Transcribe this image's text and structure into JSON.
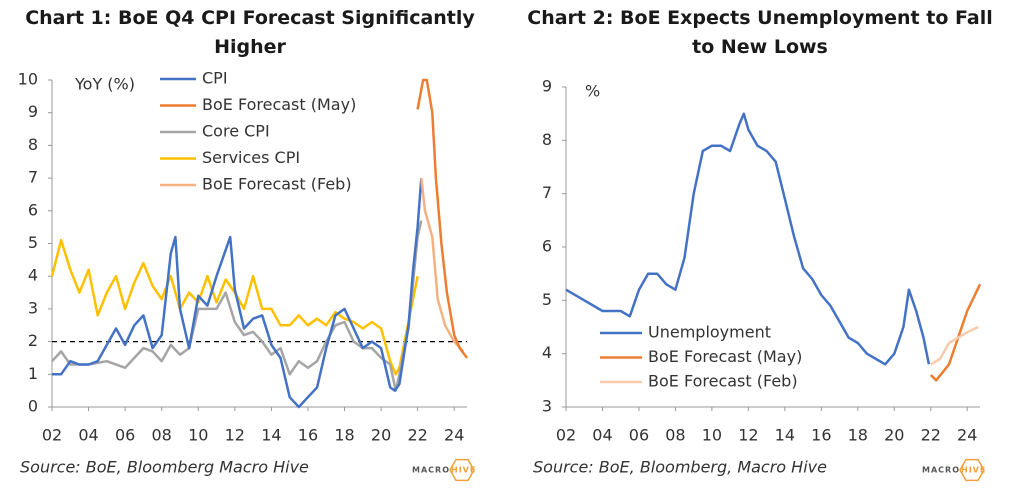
{
  "chart_data": [
    {
      "type": "line",
      "title": "Chart 1: BoE Q4 CPI Forecast Significantly Higher",
      "ylabel": "YoY (%)",
      "ylim": [
        0,
        10
      ],
      "yticks": [
        0,
        1,
        2,
        3,
        4,
        5,
        6,
        7,
        8,
        9,
        10
      ],
      "xlim": [
        2002,
        2024.7
      ],
      "xticks": [
        {
          "value": 2002,
          "label": "02"
        },
        {
          "value": 2004,
          "label": "04"
        },
        {
          "value": 2006,
          "label": "06"
        },
        {
          "value": 2008,
          "label": "08"
        },
        {
          "value": 2010,
          "label": "10"
        },
        {
          "value": 2012,
          "label": "12"
        },
        {
          "value": 2014,
          "label": "14"
        },
        {
          "value": 2016,
          "label": "16"
        },
        {
          "value": 2018,
          "label": "18"
        },
        {
          "value": 2020,
          "label": "20"
        },
        {
          "value": 2022,
          "label": "22"
        },
        {
          "value": 2024,
          "label": "24"
        }
      ],
      "reference_line": 2,
      "source": "Source: BoE, Bloomberg Macro Hive",
      "logo_left": "MACRO",
      "logo_right": "HIVE",
      "series": [
        {
          "name": "Services CPI",
          "color": "#ffc000",
          "x": [
            2002,
            2002.5,
            2003,
            2003.5,
            2004,
            2004.5,
            2005,
            2005.5,
            2006,
            2006.5,
            2007,
            2007.5,
            2008,
            2008.5,
            2009,
            2009.5,
            2010,
            2010.5,
            2011,
            2011.5,
            2012,
            2012.5,
            2013,
            2013.5,
            2014,
            2014.5,
            2015,
            2015.5,
            2016,
            2016.5,
            2017,
            2017.5,
            2018,
            2018.5,
            2019,
            2019.5,
            2020,
            2020.5,
            2020.8,
            2021,
            2021.5,
            2022
          ],
          "values": [
            4.0,
            5.1,
            4.2,
            3.5,
            4.2,
            2.8,
            3.5,
            4.0,
            3.0,
            3.8,
            4.4,
            3.7,
            3.3,
            4.0,
            3.0,
            3.5,
            3.2,
            4.0,
            3.2,
            3.9,
            3.5,
            3.0,
            4.0,
            3.0,
            3.0,
            2.5,
            2.5,
            2.8,
            2.5,
            2.7,
            2.5,
            2.9,
            2.7,
            2.6,
            2.4,
            2.6,
            2.4,
            1.4,
            1.0,
            1.2,
            2.6,
            4.0
          ]
        },
        {
          "name": "Core CPI",
          "color": "#a5a5a5",
          "x": [
            2002,
            2002.5,
            2003,
            2004,
            2005,
            2006,
            2007,
            2007.5,
            2008,
            2008.5,
            2009,
            2009.5,
            2010,
            2011,
            2011.5,
            2012,
            2012.5,
            2013,
            2013.5,
            2014,
            2014.5,
            2015,
            2015.5,
            2016,
            2016.5,
            2017,
            2017.5,
            2018,
            2018.5,
            2019,
            2019.5,
            2020,
            2020.5,
            2020.8,
            2021,
            2021.5,
            2022,
            2022.2
          ],
          "values": [
            1.4,
            1.7,
            1.3,
            1.3,
            1.4,
            1.2,
            1.8,
            1.7,
            1.4,
            1.9,
            1.6,
            1.8,
            3.0,
            3.0,
            3.5,
            2.6,
            2.2,
            2.3,
            2.0,
            1.6,
            1.8,
            1.0,
            1.4,
            1.2,
            1.4,
            2.0,
            2.5,
            2.6,
            2.0,
            1.8,
            1.8,
            1.5,
            1.3,
            0.5,
            1.0,
            2.4,
            5.2,
            5.7
          ]
        },
        {
          "name": "CPI",
          "color": "#4472c4",
          "x": [
            2002,
            2002.5,
            2003,
            2003.5,
            2004,
            2004.5,
            2005,
            2005.5,
            2006,
            2006.5,
            2007,
            2007.5,
            2008,
            2008.5,
            2008.75,
            2009,
            2009.5,
            2010,
            2010.5,
            2011,
            2011.75,
            2012,
            2012.5,
            2013,
            2013.5,
            2014,
            2014.5,
            2015,
            2015.5,
            2016,
            2016.5,
            2017,
            2017.5,
            2018,
            2018.5,
            2019,
            2019.5,
            2020,
            2020.5,
            2020.75,
            2021,
            2021.5,
            2021.75,
            2022,
            2022.2
          ],
          "values": [
            1.0,
            1.0,
            1.4,
            1.3,
            1.3,
            1.4,
            1.9,
            2.4,
            1.9,
            2.5,
            2.8,
            1.8,
            2.2,
            4.7,
            5.2,
            3.0,
            1.8,
            3.4,
            3.1,
            4.0,
            5.2,
            3.6,
            2.4,
            2.7,
            2.8,
            1.9,
            1.5,
            0.3,
            0.0,
            0.3,
            0.6,
            1.8,
            2.8,
            3.0,
            2.4,
            1.8,
            2.0,
            1.8,
            0.6,
            0.5,
            0.7,
            2.5,
            4.2,
            5.5,
            7.0
          ]
        },
        {
          "name": "BoE Forecast (Feb)",
          "color": "#f4b183",
          "x": [
            2022.2,
            2022.4,
            2022.8,
            2023.1,
            2023.5,
            2024,
            2024.5
          ],
          "values": [
            7.0,
            6.0,
            5.2,
            3.3,
            2.5,
            2.0,
            1.7
          ]
        },
        {
          "name": "BoE Forecast (May)",
          "color": "#ed7d31",
          "x": [
            2022,
            2022.3,
            2022.5,
            2022.8,
            2023,
            2023.3,
            2023.6,
            2024,
            2024.3,
            2024.7
          ],
          "values": [
            9.1,
            10.0,
            10.0,
            9.0,
            7.0,
            5.0,
            3.5,
            2.2,
            1.8,
            1.5
          ]
        }
      ],
      "legend_order": [
        "CPI",
        "BoE Forecast (May)",
        "Core CPI",
        "Services CPI",
        "BoE Forecast (Feb)"
      ]
    },
    {
      "type": "line",
      "title": "Chart 2: BoE Expects Unemployment to Fall to New Lows",
      "ylabel": "%",
      "ylim": [
        3,
        9
      ],
      "yticks": [
        3,
        4,
        5,
        6,
        7,
        8,
        9
      ],
      "xlim": [
        2002,
        2024.7
      ],
      "xticks": [
        {
          "value": 2002,
          "label": "02"
        },
        {
          "value": 2004,
          "label": "04"
        },
        {
          "value": 2006,
          "label": "06"
        },
        {
          "value": 2008,
          "label": "08"
        },
        {
          "value": 2010,
          "label": "10"
        },
        {
          "value": 2012,
          "label": "12"
        },
        {
          "value": 2014,
          "label": "14"
        },
        {
          "value": 2016,
          "label": "16"
        },
        {
          "value": 2018,
          "label": "18"
        },
        {
          "value": 2020,
          "label": "20"
        },
        {
          "value": 2022,
          "label": "22"
        },
        {
          "value": 2024,
          "label": "24"
        }
      ],
      "source": "Source: BoE, Bloomberg, Macro Hive",
      "logo_left": "MACRO",
      "logo_right": "HIVE",
      "series": [
        {
          "name": "Unemployment",
          "color": "#4472c4",
          "x": [
            2002,
            2003,
            2004,
            2005,
            2005.5,
            2006,
            2006.5,
            2007,
            2007.5,
            2008,
            2008.5,
            2009,
            2009.5,
            2010,
            2010.5,
            2011,
            2011.5,
            2011.75,
            2012,
            2012.5,
            2013,
            2013.5,
            2014,
            2014.5,
            2015,
            2015.5,
            2016,
            2016.5,
            2017,
            2017.5,
            2018,
            2018.5,
            2019,
            2019.5,
            2020,
            2020.5,
            2020.8,
            2021.2,
            2021.6,
            2021.9
          ],
          "values": [
            5.2,
            5.0,
            4.8,
            4.8,
            4.7,
            5.2,
            5.5,
            5.5,
            5.3,
            5.2,
            5.8,
            7.0,
            7.8,
            7.9,
            7.9,
            7.8,
            8.3,
            8.5,
            8.2,
            7.9,
            7.8,
            7.6,
            6.9,
            6.2,
            5.6,
            5.4,
            5.1,
            4.9,
            4.6,
            4.3,
            4.2,
            4.0,
            3.9,
            3.8,
            4.0,
            4.5,
            5.2,
            4.8,
            4.3,
            3.8
          ]
        },
        {
          "name": "BoE Forecast (May)",
          "color": "#ed7d31",
          "x": [
            2022,
            2022.3,
            2023,
            2023.5,
            2024,
            2024.7
          ],
          "values": [
            3.6,
            3.5,
            3.8,
            4.3,
            4.8,
            5.3
          ]
        },
        {
          "name": "BoE Forecast (Feb)",
          "color": "#f8cbad",
          "x": [
            2022,
            2022.5,
            2023,
            2023.5,
            2024,
            2024.6
          ],
          "values": [
            3.8,
            3.9,
            4.2,
            4.3,
            4.4,
            4.5
          ]
        }
      ],
      "legend_order": [
        "Unemployment",
        "BoE Forecast (May)",
        "BoE Forecast (Feb)"
      ]
    }
  ]
}
